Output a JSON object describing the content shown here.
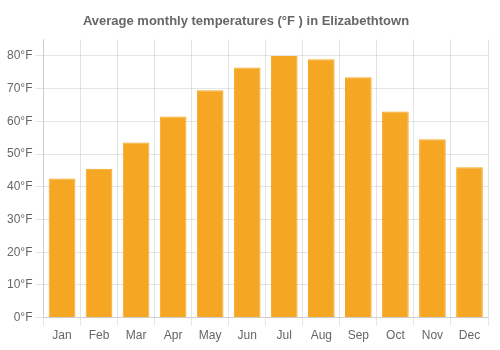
{
  "chart_data": {
    "type": "bar",
    "title": "Average monthly temperatures (°F ) in Elizabethtown",
    "categories": [
      "Jan",
      "Feb",
      "Mar",
      "Apr",
      "May",
      "Jun",
      "Jul",
      "Aug",
      "Sep",
      "Oct",
      "Nov",
      "Dec"
    ],
    "values": [
      42.5,
      45.5,
      53.5,
      61.5,
      69.5,
      76.5,
      80,
      79,
      73.5,
      63,
      54.5,
      46
    ],
    "color": "#F5A623",
    "ylim": [
      0,
      85
    ],
    "yticks": [
      {
        "value": 0,
        "label": "0°F"
      },
      {
        "value": 10,
        "label": "10°F"
      },
      {
        "value": 20,
        "label": "20°F"
      },
      {
        "value": 30,
        "label": "30°F"
      },
      {
        "value": 40,
        "label": "40°F"
      },
      {
        "value": 50,
        "label": "50°F"
      },
      {
        "value": 60,
        "label": "60°F"
      },
      {
        "value": 70,
        "label": "70°F"
      },
      {
        "value": 80,
        "label": "80°F"
      }
    ],
    "grid": true
  }
}
